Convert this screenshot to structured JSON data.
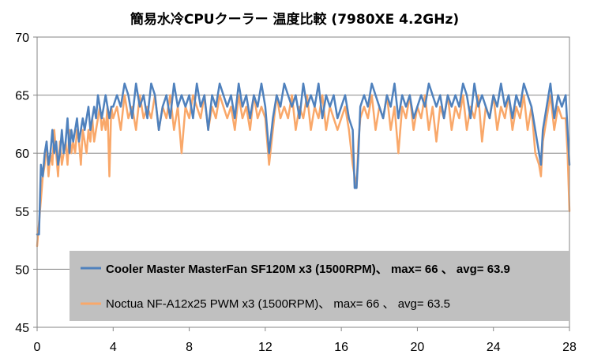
{
  "chart_data": {
    "type": "line",
    "title": "簡易水冷CPUクーラー 温度比較 (7980XE 4.2GHz)",
    "xlabel": "",
    "ylabel": "",
    "xlim": [
      0,
      28
    ],
    "ylim": [
      45,
      70
    ],
    "x_ticks": [
      0,
      4,
      8,
      12,
      16,
      20,
      24,
      28
    ],
    "y_ticks": [
      45,
      50,
      55,
      60,
      65,
      70
    ],
    "grid": "horizontal",
    "legend_placement": "bottom-center-inside",
    "series": [
      {
        "name": "Cooler Master MasterFan SF120M x3 (1500RPM)、 max= 66 、 avg= 63.9",
        "color": "#4f81bd",
        "x": [
          0,
          0.1,
          0.2,
          0.3,
          0.4,
          0.5,
          0.6,
          0.7,
          0.8,
          0.9,
          1.0,
          1.1,
          1.2,
          1.3,
          1.4,
          1.5,
          1.6,
          1.7,
          1.8,
          1.9,
          2.0,
          2.1,
          2.2,
          2.3,
          2.4,
          2.5,
          2.6,
          2.7,
          2.8,
          2.9,
          3.0,
          3.1,
          3.2,
          3.3,
          3.4,
          3.5,
          3.6,
          3.7,
          3.8,
          3.9,
          4.0,
          4.2,
          4.4,
          4.6,
          4.8,
          5.0,
          5.2,
          5.4,
          5.6,
          5.8,
          6.0,
          6.2,
          6.4,
          6.6,
          6.8,
          7.0,
          7.2,
          7.4,
          7.6,
          7.8,
          8.0,
          8.2,
          8.4,
          8.6,
          8.8,
          9.0,
          9.2,
          9.4,
          9.6,
          9.8,
          10.0,
          10.2,
          10.4,
          10.6,
          10.8,
          11.0,
          11.2,
          11.4,
          11.6,
          11.8,
          12.0,
          12.2,
          12.4,
          12.6,
          12.8,
          13.0,
          13.2,
          13.4,
          13.6,
          13.8,
          14.0,
          14.2,
          14.4,
          14.6,
          14.8,
          15.0,
          15.2,
          15.4,
          15.6,
          15.8,
          16.0,
          16.2,
          16.4,
          16.6,
          16.7,
          16.8,
          16.9,
          17.0,
          17.2,
          17.4,
          17.6,
          17.8,
          18.0,
          18.2,
          18.4,
          18.6,
          18.8,
          19.0,
          19.2,
          19.4,
          19.6,
          19.8,
          20.0,
          20.2,
          20.4,
          20.6,
          20.8,
          21.0,
          21.2,
          21.4,
          21.6,
          21.8,
          22.0,
          22.2,
          22.4,
          22.6,
          22.8,
          23.0,
          23.2,
          23.4,
          23.6,
          23.8,
          24.0,
          24.2,
          24.4,
          24.6,
          24.8,
          25.0,
          25.2,
          25.4,
          25.6,
          25.8,
          26.0,
          26.2,
          26.4,
          26.5,
          26.6,
          26.8,
          27.0,
          27.2,
          27.4,
          27.6,
          27.8,
          27.9,
          28.0
        ],
        "values": [
          53,
          53,
          59,
          58,
          60,
          61,
          59,
          60,
          62,
          60,
          61,
          59,
          60,
          62,
          60,
          61,
          63,
          60,
          62,
          61,
          62,
          63,
          61,
          62,
          63,
          62,
          63,
          64,
          62,
          63,
          64,
          63,
          65,
          64,
          63,
          64,
          65,
          64,
          63,
          64,
          64,
          65,
          64,
          66,
          65,
          63,
          66,
          64,
          65,
          63,
          66,
          65,
          62,
          64,
          65,
          63,
          66,
          64,
          65,
          64,
          65,
          63,
          66,
          64,
          65,
          62,
          65,
          64,
          66,
          65,
          64,
          65,
          63,
          66,
          64,
          65,
          63,
          65,
          64,
          66,
          64,
          60,
          63,
          65,
          64,
          66,
          65,
          64,
          65,
          63,
          66,
          64,
          65,
          64,
          66,
          63,
          65,
          64,
          65,
          63,
          64,
          65,
          63,
          62,
          57,
          57,
          60,
          64,
          65,
          64,
          66,
          65,
          64,
          63,
          65,
          64,
          66,
          63,
          65,
          64,
          65,
          63,
          64,
          65,
          64,
          66,
          65,
          64,
          65,
          63,
          65,
          64,
          65,
          64,
          66,
          65,
          63,
          66,
          64,
          65,
          64,
          63,
          65,
          64,
          66,
          64,
          65,
          63,
          65,
          64,
          66,
          65,
          64,
          62,
          60,
          59,
          62,
          64,
          66,
          63,
          65,
          64,
          65,
          62,
          59
        ]
      },
      {
        "name": "Noctua NF-A12x25 PWM x3 (1500RPM)、 max= 66 、 avg= 63.5",
        "color": "#f9a86a",
        "x": [
          0,
          0.1,
          0.2,
          0.3,
          0.4,
          0.5,
          0.6,
          0.7,
          0.8,
          0.9,
          1.0,
          1.1,
          1.2,
          1.3,
          1.4,
          1.5,
          1.6,
          1.7,
          1.8,
          1.9,
          2.0,
          2.1,
          2.2,
          2.3,
          2.4,
          2.5,
          2.6,
          2.7,
          2.8,
          2.9,
          3.0,
          3.1,
          3.2,
          3.3,
          3.4,
          3.5,
          3.6,
          3.7,
          3.8,
          3.9,
          4.0,
          4.2,
          4.4,
          4.6,
          4.8,
          5.0,
          5.2,
          5.4,
          5.6,
          5.8,
          6.0,
          6.2,
          6.4,
          6.6,
          6.8,
          7.0,
          7.2,
          7.4,
          7.6,
          7.8,
          8.0,
          8.2,
          8.4,
          8.6,
          8.8,
          9.0,
          9.2,
          9.4,
          9.6,
          9.8,
          10.0,
          10.2,
          10.4,
          10.6,
          10.8,
          11.0,
          11.2,
          11.4,
          11.6,
          11.8,
          12.0,
          12.2,
          12.4,
          12.6,
          12.8,
          13.0,
          13.2,
          13.4,
          13.6,
          13.8,
          14.0,
          14.2,
          14.4,
          14.6,
          14.8,
          15.0,
          15.2,
          15.4,
          15.6,
          15.8,
          16.0,
          16.2,
          16.4,
          16.6,
          16.7,
          16.8,
          16.9,
          17.0,
          17.2,
          17.4,
          17.6,
          17.8,
          18.0,
          18.2,
          18.4,
          18.6,
          18.8,
          19.0,
          19.2,
          19.4,
          19.6,
          19.8,
          20.0,
          20.2,
          20.4,
          20.6,
          20.8,
          21.0,
          21.2,
          21.4,
          21.6,
          21.8,
          22.0,
          22.2,
          22.4,
          22.6,
          22.8,
          23.0,
          23.2,
          23.4,
          23.6,
          23.8,
          24.0,
          24.2,
          24.4,
          24.6,
          24.8,
          25.0,
          25.2,
          25.4,
          25.6,
          25.8,
          26.0,
          26.2,
          26.4,
          26.5,
          26.6,
          26.8,
          27.0,
          27.2,
          27.4,
          27.6,
          27.8,
          27.9,
          28.0
        ],
        "values": [
          52,
          54,
          56,
          58,
          59,
          61,
          58,
          60,
          59,
          62,
          60,
          58,
          61,
          59,
          60,
          61,
          59,
          62,
          60,
          61,
          60,
          62,
          61,
          59,
          62,
          61,
          60,
          62,
          61,
          63,
          61,
          62,
          63,
          64,
          62,
          63,
          62,
          64,
          58,
          64,
          63,
          64,
          62,
          65,
          63,
          64,
          62,
          65,
          63,
          64,
          63,
          65,
          62,
          64,
          63,
          65,
          62,
          64,
          60,
          64,
          63,
          65,
          64,
          63,
          65,
          62,
          64,
          63,
          65,
          64,
          63,
          64,
          62,
          65,
          63,
          64,
          62,
          65,
          63,
          64,
          63,
          59,
          62,
          65,
          63,
          64,
          63,
          65,
          62,
          64,
          63,
          65,
          62,
          64,
          63,
          65,
          62,
          64,
          63,
          62,
          63,
          64,
          62,
          59,
          58,
          57,
          61,
          63,
          64,
          63,
          65,
          62,
          64,
          63,
          65,
          62,
          64,
          60,
          64,
          63,
          65,
          62,
          64,
          63,
          65,
          62,
          64,
          61,
          64,
          63,
          65,
          62,
          64,
          63,
          65,
          62,
          64,
          63,
          65,
          61,
          64,
          63,
          65,
          62,
          64,
          63,
          65,
          62,
          64,
          63,
          65,
          62,
          64,
          60,
          59,
          58,
          61,
          63,
          65,
          62,
          64,
          63,
          63,
          60,
          55
        ]
      }
    ]
  }
}
